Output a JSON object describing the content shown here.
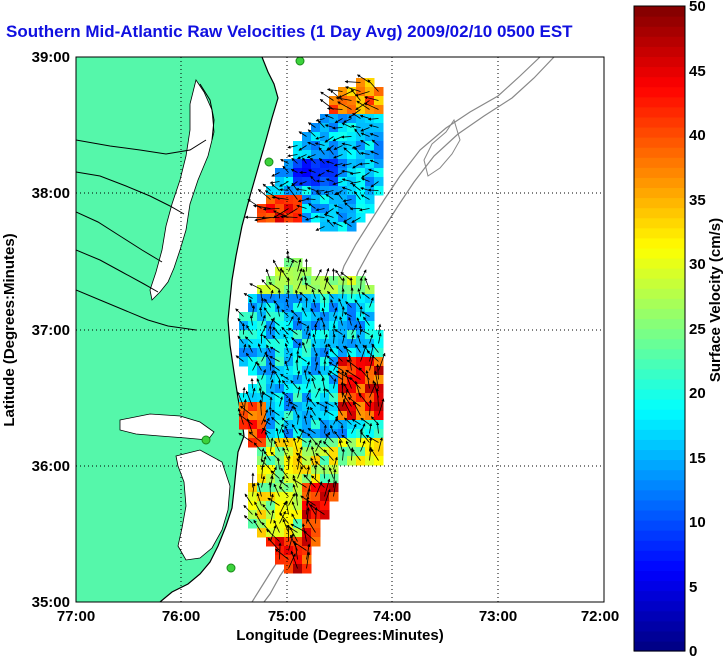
{
  "title": "Southern Mid-Atlantic Raw Velocities (1 Day Avg) 2009/02/10 0500 EST",
  "map": {
    "x_axis_label": "Longitude (Degrees:Minutes)",
    "y_axis_label": "Latitude (Degrees:Minutes)",
    "x_ticks": [
      "77:00",
      "76:00",
      "75:00",
      "74:00",
      "73:00",
      "72:00"
    ],
    "y_ticks": [
      "39:00",
      "38:00",
      "37:00",
      "36:00",
      "35:00"
    ],
    "lon_range": [
      -77,
      -72
    ],
    "lat_range": [
      35,
      39
    ],
    "land_color": "#55f7aa",
    "station_color": "#3cd23c"
  },
  "colorbar": {
    "label": "Surface Velocity (cm/s)",
    "ticks": [
      "0",
      "5",
      "10",
      "15",
      "20",
      "25",
      "30",
      "35",
      "40",
      "45",
      "50"
    ],
    "range": [
      0,
      50
    ],
    "colormap": "jet"
  }
}
